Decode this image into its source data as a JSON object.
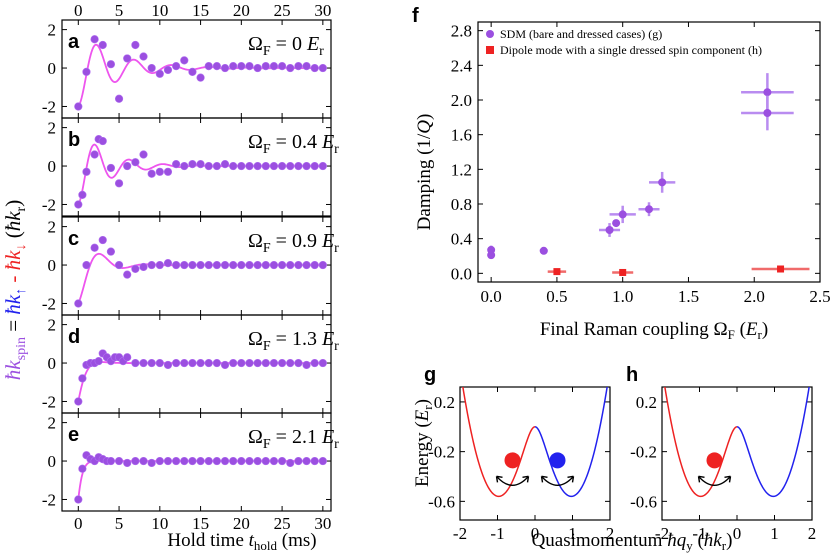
{
  "left_panels": {
    "x_label_prefix": "Hold time ",
    "x_label_var": "t",
    "x_label_sub": "hold",
    "x_label_unit": " (ms)",
    "y_label": {
      "lhs": "ħk",
      "lhs_sub": "spin",
      "eq": " = ",
      "up": "ħk",
      "up_sub": "↑",
      "minus": " - ",
      "down": "ħk",
      "down_sub": "↓",
      "unit_open": " (",
      "unit": "ħk",
      "unit_sub": "r",
      "unit_close": ")"
    }
  },
  "right_top": {
    "letter": "f",
    "xlabel": "Final Raman coupling Ω",
    "xlabel_sub": "F",
    "xlabel_unit_open": " (",
    "xlabel_unit": "E",
    "xlabel_unit_sub": "r",
    "xlabel_unit_close": ")",
    "ylabel": "Damping (1/",
    "ylabel_q": "Q",
    "ylabel_close": ")"
  },
  "bottom_panels": {
    "xlabel": "Quasimomentum ",
    "xlabel_var": "ħq",
    "xlabel_sub": "y",
    "xlabel_unit_open": " (",
    "xlabel_unit": "ħk",
    "xlabel_unit_sub": "r",
    "xlabel_unit_close": ")",
    "ylabel": "Energy (",
    "ylabel_var": "E",
    "ylabel_sub": "r",
    "ylabel_close": ")"
  },
  "colors": {
    "purple": "#9b4fe0",
    "magenta_fit": "#ee55ee",
    "red": "#ee2222",
    "blue": "#2222ee",
    "black": "#000000"
  },
  "chart_data": [
    {
      "type": "scatter",
      "id": "a",
      "letter": "a",
      "omega_label": "Ω",
      "omega_sub": "F",
      "omega_value": " = 0 ",
      "omega_unit": "E",
      "omega_unit_sub": "r",
      "xlim": [
        -2,
        31
      ],
      "ylim": [
        -2.6,
        2.5
      ],
      "xticks": [
        0,
        5,
        10,
        15,
        20,
        25,
        30
      ],
      "yticks": [
        -2,
        0,
        2
      ],
      "x": [
        0,
        1,
        2,
        3,
        4,
        5,
        6,
        7,
        8,
        9,
        10,
        11,
        12,
        13,
        14,
        15,
        16,
        17,
        18,
        19,
        20,
        21,
        22,
        23,
        24,
        25,
        26,
        27,
        28,
        29,
        30
      ],
      "y": [
        -2.0,
        -0.2,
        1.5,
        1.2,
        0.2,
        -1.6,
        0.5,
        1.2,
        0.6,
        0.0,
        -0.3,
        -0.1,
        0.1,
        0.4,
        -0.2,
        -0.5,
        0.1,
        0.1,
        0.0,
        0.1,
        0.1,
        0.1,
        0.0,
        0.1,
        0.1,
        0.1,
        0.0,
        0.1,
        0.1,
        0.0,
        0.0
      ],
      "fit": {
        "A": -2.0,
        "period": 4.6,
        "tau": 4.5
      }
    },
    {
      "type": "scatter",
      "id": "b",
      "letter": "b",
      "omega_label": "Ω",
      "omega_sub": "F",
      "omega_value": " = 0.4 ",
      "omega_unit": "E",
      "omega_unit_sub": "r",
      "xlim": [
        -2,
        31
      ],
      "ylim": [
        -2.6,
        2.5
      ],
      "xticks": [
        0,
        5,
        10,
        15,
        20,
        25,
        30
      ],
      "yticks": [
        -2,
        0,
        2
      ],
      "x": [
        0,
        0.5,
        1,
        2,
        2.5,
        3,
        4,
        5,
        6,
        7,
        8,
        9,
        10,
        11,
        12,
        13,
        14,
        15,
        16,
        17,
        18,
        19,
        20,
        21,
        22,
        23,
        24,
        25,
        26,
        27,
        28,
        29,
        30
      ],
      "y": [
        -2.0,
        -1.5,
        -0.3,
        0.6,
        1.4,
        1.3,
        -0.1,
        -0.9,
        0.0,
        0.2,
        0.6,
        -0.4,
        -0.3,
        -0.3,
        0.1,
        0.0,
        0.1,
        0.1,
        0.0,
        0.0,
        0.1,
        0.0,
        0.0,
        0.0,
        0.0,
        0.0,
        0.0,
        0.0,
        0.0,
        0.0,
        0.0,
        0.0,
        0.0
      ],
      "fit": {
        "A": -2.0,
        "period": 4.2,
        "tau": 3.5
      }
    },
    {
      "type": "scatter",
      "id": "c",
      "letter": "c",
      "omega_label": "Ω",
      "omega_sub": "F",
      "omega_value": " = 0.9 ",
      "omega_unit": "E",
      "omega_unit_sub": "r",
      "xlim": [
        -2,
        31
      ],
      "ylim": [
        -2.6,
        2.5
      ],
      "xticks": [
        0,
        5,
        10,
        15,
        20,
        25,
        30
      ],
      "yticks": [
        -2,
        0,
        2
      ],
      "x": [
        0,
        1,
        2,
        3,
        4,
        5,
        6,
        7,
        8,
        9,
        10,
        11,
        12,
        13,
        14,
        15,
        16,
        17,
        18,
        19,
        20,
        21,
        22,
        23,
        24,
        25,
        26,
        27,
        28,
        29,
        30
      ],
      "y": [
        -2.0,
        0.0,
        0.9,
        1.3,
        0.7,
        0.0,
        -0.5,
        -0.2,
        -0.1,
        0.0,
        0.0,
        0.1,
        0.0,
        0.0,
        0.0,
        0.0,
        0.0,
        0.0,
        0.0,
        0.0,
        0.0,
        0.0,
        0.0,
        0.0,
        0.0,
        0.0,
        0.0,
        0.0,
        0.0,
        0.0,
        0.0
      ],
      "fit": {
        "A": -2.0,
        "period": 5.8,
        "tau": 2.2
      }
    },
    {
      "type": "scatter",
      "id": "d",
      "letter": "d",
      "omega_label": "Ω",
      "omega_sub": "F",
      "omega_value": " = 1.3 ",
      "omega_unit": "E",
      "omega_unit_sub": "r",
      "xlim": [
        -2,
        31
      ],
      "ylim": [
        -2.6,
        2.5
      ],
      "xticks": [
        0,
        5,
        10,
        15,
        20,
        25,
        30
      ],
      "yticks": [
        -2,
        0,
        2
      ],
      "x": [
        0,
        0.5,
        1,
        1.5,
        2,
        2.5,
        3,
        3.5,
        4,
        4.5,
        5,
        5.5,
        6,
        7,
        8,
        9,
        10,
        11,
        12,
        13,
        14,
        15,
        16,
        17,
        18,
        19,
        20,
        21,
        22,
        23,
        24,
        25,
        26,
        27,
        28,
        29,
        30
      ],
      "y": [
        -2.0,
        -0.8,
        -0.1,
        0.0,
        0.0,
        0.1,
        0.5,
        0.3,
        0.1,
        0.3,
        0.3,
        0.1,
        0.3,
        0.0,
        0.0,
        0.0,
        0.0,
        -0.1,
        0.0,
        0.0,
        0.0,
        0.0,
        0.0,
        0.0,
        -0.1,
        0.0,
        0.0,
        0.0,
        0.0,
        0.0,
        0.0,
        0.0,
        0.0,
        0.0,
        -0.1,
        0.0,
        0.0
      ],
      "fit": {
        "A": -2.0,
        "period": 8.0,
        "tau": 0.9
      }
    },
    {
      "type": "scatter",
      "id": "e",
      "letter": "e",
      "omega_label": "Ω",
      "omega_sub": "F",
      "omega_value": " = 2.1 ",
      "omega_unit": "E",
      "omega_unit_sub": "r",
      "xlim": [
        -2,
        31
      ],
      "ylim": [
        -2.6,
        2.5
      ],
      "xticks": [
        0,
        5,
        10,
        15,
        20,
        25,
        30
      ],
      "yticks": [
        -2,
        0,
        2
      ],
      "x": [
        0,
        0.5,
        1,
        1.5,
        2,
        2.5,
        3,
        3.5,
        4,
        5,
        6,
        7,
        8,
        9,
        10,
        11,
        12,
        13,
        14,
        15,
        16,
        17,
        18,
        19,
        20,
        21,
        22,
        23,
        24,
        25,
        26,
        27,
        28,
        29,
        30
      ],
      "y": [
        -2.0,
        -0.4,
        0.3,
        0.1,
        0.0,
        0.2,
        0.1,
        0.0,
        0.0,
        0.0,
        -0.1,
        0.0,
        0.0,
        -0.1,
        0.0,
        0.0,
        0.0,
        0.0,
        0.0,
        0.0,
        0.0,
        0.0,
        0.0,
        0.0,
        0.0,
        0.0,
        0.0,
        0.0,
        0.0,
        0.0,
        -0.1,
        0.0,
        0.0,
        0.0,
        0.0
      ],
      "fit": {
        "A": -2.0,
        "period": 8.0,
        "tau": 0.5
      }
    },
    {
      "type": "scatter",
      "id": "f",
      "xlim": [
        -0.1,
        2.5
      ],
      "ylim": [
        -0.1,
        2.9
      ],
      "xticks": [
        0.0,
        0.5,
        1.0,
        1.5,
        2.0,
        2.5
      ],
      "xtick_labels": [
        "0.0",
        "0.5",
        "1.0",
        "1.5",
        "2.0",
        "2.5"
      ],
      "yticks": [
        0.0,
        0.4,
        0.8,
        1.2,
        1.6,
        2.0,
        2.4,
        2.8
      ],
      "ytick_labels": [
        "0.0",
        "0.4",
        "0.8",
        "1.2",
        "1.6",
        "2.0",
        "2.4",
        "2.8"
      ],
      "legend": "top-left",
      "series": [
        {
          "name": "SDM (bare and dressed cases) (g)",
          "marker": "circle",
          "points": [
            {
              "x": 0.0,
              "y": 0.27,
              "xerr": 0.0,
              "yerr": 0.05
            },
            {
              "x": 0.0,
              "y": 0.21,
              "xerr": 0.0,
              "yerr": 0.04
            },
            {
              "x": 0.4,
              "y": 0.26,
              "xerr": 0.03,
              "yerr": 0.04
            },
            {
              "x": 0.9,
              "y": 0.5,
              "xerr": 0.08,
              "yerr": 0.08
            },
            {
              "x": 1.0,
              "y": 0.68,
              "xerr": 0.1,
              "yerr": 0.1
            },
            {
              "x": 0.95,
              "y": 0.58,
              "xerr": 0.0,
              "yerr": 0.0
            },
            {
              "x": 1.2,
              "y": 0.74,
              "xerr": 0.08,
              "yerr": 0.08
            },
            {
              "x": 1.3,
              "y": 1.05,
              "xerr": 0.1,
              "yerr": 0.12
            },
            {
              "x": 2.1,
              "y": 2.09,
              "xerr": 0.2,
              "yerr": 0.22
            },
            {
              "x": 2.1,
              "y": 1.85,
              "xerr": 0.2,
              "yerr": 0.2
            }
          ]
        },
        {
          "name": "Dipole mode with a single dressed spin component (h)",
          "marker": "square",
          "points": [
            {
              "x": 0.5,
              "y": 0.02,
              "xerr": 0.07,
              "yerr": 0.03
            },
            {
              "x": 1.0,
              "y": 0.01,
              "xerr": 0.08,
              "yerr": 0.03
            },
            {
              "x": 2.2,
              "y": 0.05,
              "xerr": 0.22,
              "yerr": 0.03
            }
          ]
        }
      ]
    },
    {
      "type": "line",
      "id": "g",
      "letter": "g",
      "omega": 1.0,
      "xlim": [
        -2,
        2
      ],
      "ylim": [
        -0.75,
        0.32
      ],
      "xticks": [
        -2,
        -1,
        0,
        1,
        2
      ],
      "yticks": [
        0.2,
        -0.2,
        -0.6
      ],
      "ytick_labels": [
        "0.2",
        "-0.2",
        "-0.6"
      ],
      "atoms": [
        {
          "color": "red",
          "q": -0.6,
          "E": -0.27
        },
        {
          "color": "blue",
          "q": 0.6,
          "E": -0.27
        }
      ]
    },
    {
      "type": "line",
      "id": "h",
      "letter": "h",
      "omega": 1.0,
      "xlim": [
        -2,
        2
      ],
      "ylim": [
        -0.75,
        0.32
      ],
      "xticks": [
        -2,
        -1,
        0,
        1,
        2
      ],
      "yticks": [
        0.2,
        -0.2,
        -0.6
      ],
      "ytick_labels": [
        "0.2",
        "-0.2",
        "-0.6"
      ],
      "atoms": [
        {
          "color": "red",
          "q": -0.6,
          "E": -0.27
        }
      ]
    }
  ]
}
